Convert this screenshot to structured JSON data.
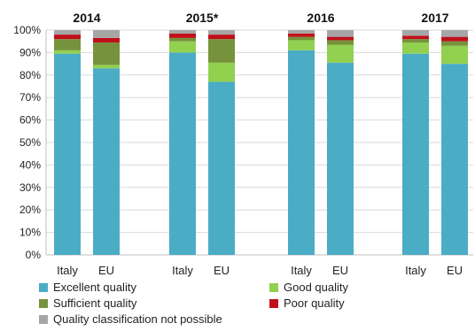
{
  "chart_data": {
    "type": "bar",
    "stacked": true,
    "ylim": [
      0,
      100
    ],
    "yticks": [
      "0%",
      "10%",
      "20%",
      "30%",
      "40%",
      "50%",
      "60%",
      "70%",
      "80%",
      "90%",
      "100%"
    ],
    "groups": [
      {
        "label": "2014",
        "categories": [
          "Italy",
          "EU"
        ]
      },
      {
        "label": "2015*",
        "categories": [
          "Italy",
          "EU"
        ]
      },
      {
        "label": "2016",
        "categories": [
          "Italy",
          "EU"
        ]
      },
      {
        "label": "2017",
        "categories": [
          "Italy",
          "EU"
        ]
      }
    ],
    "categories": [
      "Italy",
      "EU",
      "Italy",
      "EU",
      "Italy",
      "EU",
      "Italy",
      "EU"
    ],
    "series": [
      {
        "name": "Excellent quality",
        "color": "#4bacc6",
        "values": [
          89.5,
          83,
          90,
          77,
          91,
          85.5,
          89.5,
          85
        ]
      },
      {
        "name": "Good quality",
        "color": "#92d050",
        "values": [
          1.5,
          1.5,
          5,
          8.5,
          4.5,
          8,
          5,
          8
        ]
      },
      {
        "name": "Sufficient quality",
        "color": "#76923c",
        "values": [
          5,
          10,
          1.5,
          10.5,
          1.5,
          2,
          1.5,
          2
        ]
      },
      {
        "name": "Poor quality",
        "color": "#c0101a",
        "values": [
          2,
          2,
          2,
          2,
          1.5,
          1.5,
          1.5,
          2
        ]
      },
      {
        "name": "Quality classification not possible",
        "color": "#a6a6a6",
        "values": [
          2,
          3.5,
          1.5,
          2,
          1.5,
          3,
          2.5,
          3
        ]
      }
    ],
    "legend": {
      "position": "bottom",
      "items": [
        {
          "name": "Excellent quality",
          "color": "#4bacc6"
        },
        {
          "name": "Good quality",
          "color": "#92d050"
        },
        {
          "name": "Sufficient quality",
          "color": "#76923c"
        },
        {
          "name": "Poor quality",
          "color": "#c0101a"
        },
        {
          "name": "Quality classification not possible",
          "color": "#a6a6a6"
        }
      ]
    },
    "grid": true,
    "title": "",
    "xlabel": "",
    "ylabel": ""
  }
}
